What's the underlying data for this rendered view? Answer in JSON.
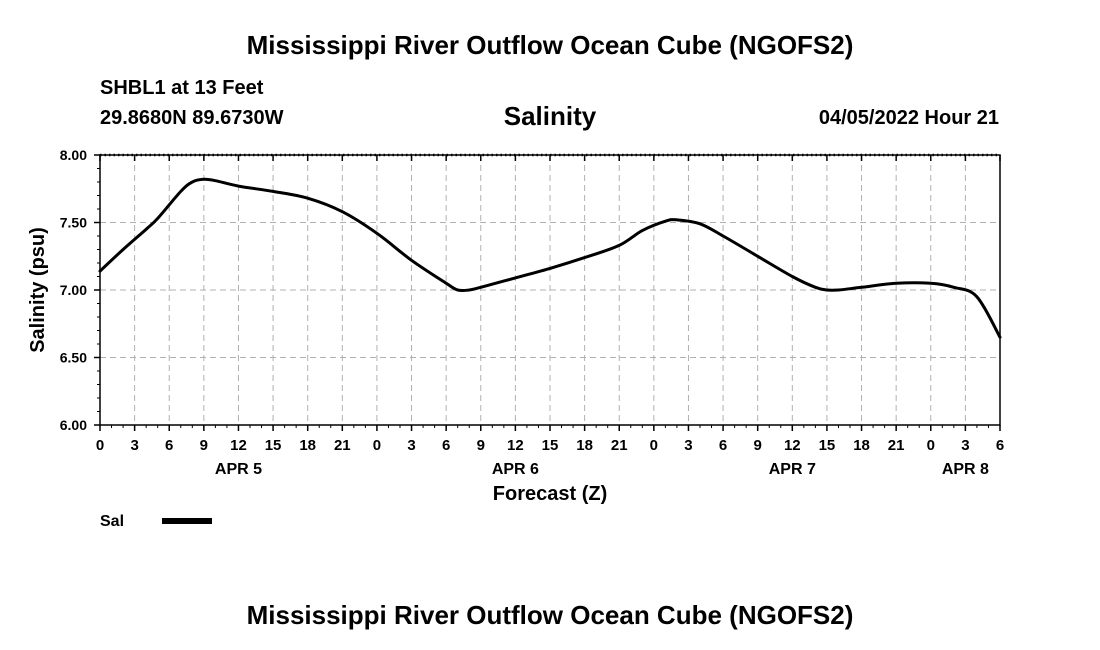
{
  "header": {
    "title": "Mississippi River Outflow Ocean Cube (NGOFS2)",
    "station": "SHBL1 at 13 Feet",
    "coords": "29.8680N  89.6730W",
    "variable": "Salinity",
    "datetime": "04/05/2022 Hour 21"
  },
  "footer": {
    "title": "Mississippi River Outflow Ocean Cube (NGOFS2)"
  },
  "chart_data": {
    "type": "line",
    "title": "Salinity",
    "xlabel": "Forecast (Z)",
    "ylabel": "Salinity (psu)",
    "ylim": [
      6.0,
      8.0
    ],
    "xlim": [
      0,
      78
    ],
    "x_unit": "hours since 04/05/2022 00Z",
    "grid": true,
    "y_ticks": [
      "6.00",
      "6.50",
      "7.00",
      "7.50",
      "8.00"
    ],
    "y_tick_values": [
      6.0,
      6.5,
      7.0,
      7.5,
      8.0
    ],
    "x_ticks": [
      "0",
      "3",
      "6",
      "9",
      "12",
      "15",
      "18",
      "21",
      "0",
      "3",
      "6",
      "9",
      "12",
      "15",
      "18",
      "21",
      "0",
      "3",
      "6",
      "9",
      "12",
      "15",
      "18",
      "21",
      "0",
      "3",
      "6"
    ],
    "day_labels": [
      {
        "label": "APR 5",
        "hour": 12
      },
      {
        "label": "APR 6",
        "hour": 36
      },
      {
        "label": "APR 7",
        "hour": 60
      },
      {
        "label": "APR 8",
        "hour": 75
      }
    ],
    "legend": [
      {
        "name": "Sal",
        "color": "#000000"
      }
    ],
    "legend_position": "bottom-left",
    "series": [
      {
        "name": "Sal",
        "color": "#000000",
        "x": [
          0,
          2,
          4,
          5,
          7,
          8,
          9,
          10,
          12,
          15,
          18,
          21,
          24,
          27,
          30,
          31,
          32,
          33,
          36,
          39,
          42,
          45,
          47,
          49,
          50,
          52,
          54,
          57,
          60,
          62,
          63,
          64,
          66,
          69,
          72,
          74,
          76,
          78
        ],
        "values": [
          7.14,
          7.3,
          7.45,
          7.53,
          7.73,
          7.8,
          7.82,
          7.81,
          7.77,
          7.73,
          7.68,
          7.58,
          7.42,
          7.22,
          7.05,
          7.0,
          7.0,
          7.02,
          7.09,
          7.16,
          7.24,
          7.33,
          7.44,
          7.51,
          7.52,
          7.49,
          7.4,
          7.25,
          7.1,
          7.02,
          7.0,
          7.0,
          7.02,
          7.05,
          7.05,
          7.02,
          6.95,
          6.65
        ]
      }
    ]
  }
}
